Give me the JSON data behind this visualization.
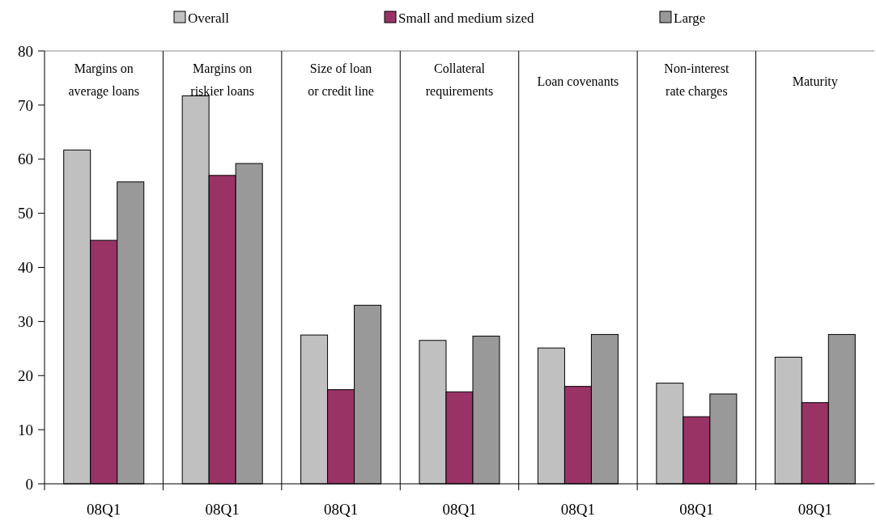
{
  "chart_data": {
    "type": "bar",
    "categories": [
      "08Q1",
      "08Q1",
      "08Q1",
      "08Q1",
      "08Q1",
      "08Q1",
      "08Q1"
    ],
    "annotations": [
      "Margins on average loans",
      "Margins on riskier loans",
      "Size of loan or credit line",
      "Collateral requirements",
      "Loan covenants",
      "Non-interest rate charges",
      "Maturity"
    ],
    "series": [
      {
        "name": "Overall",
        "color": "#c0c0c0",
        "values": [
          61.7,
          71.7,
          27.5,
          26.5,
          25.1,
          18.6,
          23.4
        ]
      },
      {
        "name": "Small and medium sized",
        "color": "#993366",
        "values": [
          45,
          57,
          17.4,
          17,
          18,
          12.4,
          15
        ]
      },
      {
        "name": "Large",
        "color": "#999999",
        "values": [
          55.8,
          59.2,
          33,
          27.3,
          27.6,
          16.6,
          27.6
        ]
      }
    ],
    "ylim": [
      0,
      80
    ],
    "yticks": [
      0,
      10,
      20,
      30,
      40,
      50,
      60,
      70,
      80
    ],
    "grid": false,
    "legend": "top"
  }
}
